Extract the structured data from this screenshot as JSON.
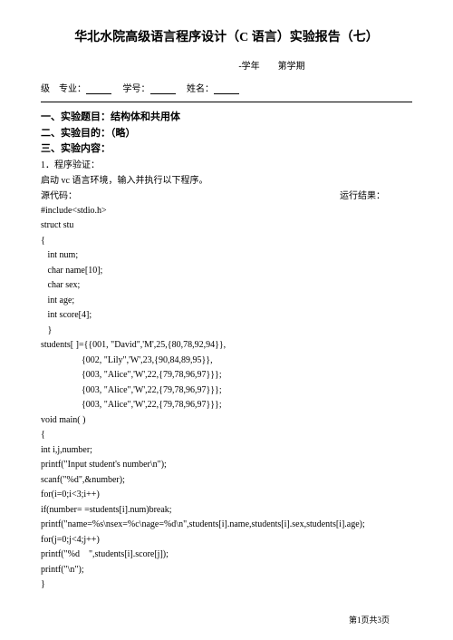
{
  "title": "华北水院高级语言程序设计（C 语言）实验报告（七）",
  "subtitle": "-学年　　第学期",
  "info": {
    "grade_label": "级　专业：",
    "id_label": "　学号：",
    "name_label": "　姓名："
  },
  "sections": {
    "s1": "一、实验题目：结构体和共用体",
    "s2": "二、实验目的：（略）",
    "s3": "三、实验内容："
  },
  "para1": "1．程序验证：",
  "para2": "启动 vc 语言环境，输入并执行以下程序。",
  "src_label": "源代码：",
  "result_label": "运行结果：",
  "code": [
    "#include<stdio.h>",
    "struct stu",
    "{",
    "   int num;",
    "   char name[10];",
    "   char sex;",
    "   int age;",
    "   int score[4];",
    "   }",
    "students[ ]={{001, \"David\",'M',25,{80,78,92,94}},",
    "                  {002, \"Lily\",'W',23,{90,84,89,95}},",
    "                  {003, \"Alice\",'W',22,{79,78,96,97}}};",
    "                  {003, \"Alice\",'W',22,{79,78,96,97}}};",
    "                  {003, \"Alice\",'W',22,{79,78,96,97}}};",
    "void main( )",
    "{",
    "int i,j,number;",
    "printf(\"Input student's number\\n\");",
    "scanf(\"%d\",&number);",
    "for(i=0;i<3;i++)",
    "if(number= =students[i].num)break;",
    "printf(\"name=%s\\nsex=%c\\nage=%d\\n\",students[i].name,students[i].sex,students[i].age);",
    "for(j=0;j<4;j++)",
    "printf(\"%d    \",students[i].score[j]);",
    "printf(\"\\n\");",
    "}"
  ],
  "footer": "第1页共3页"
}
